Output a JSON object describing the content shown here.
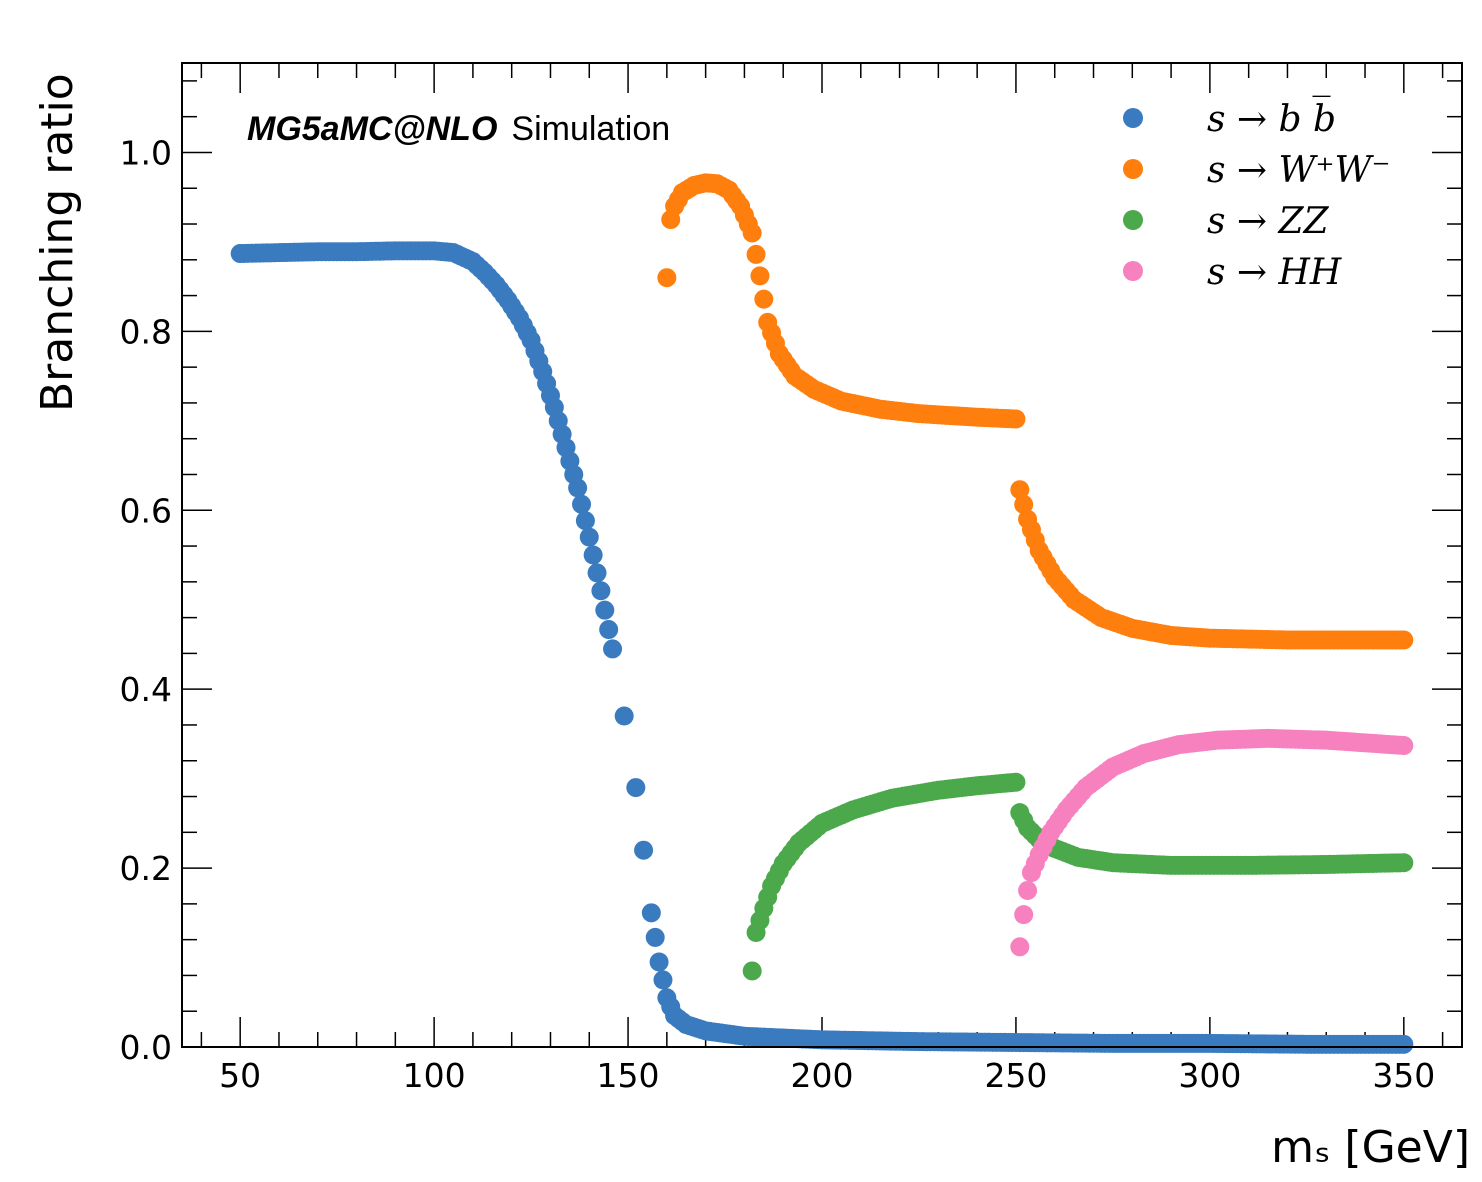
{
  "chart_data": {
    "type": "scatter",
    "xlabel": "mₛ [GeV]",
    "ylabel": "Branching ratio",
    "xlim": [
      35,
      365
    ],
    "ylim": [
      0,
      1.1
    ],
    "x_ticks": [
      "50",
      "100",
      "150",
      "200",
      "250",
      "300",
      "350"
    ],
    "y_ticks": [
      "0.0",
      "0.2",
      "0.4",
      "0.6",
      "0.8",
      "1.0"
    ],
    "experiment_label": {
      "bold": "MG5aMC@NLO",
      "plain": "Simulation"
    },
    "legend_position": "top-right",
    "grid": false,
    "series": [
      {
        "name": "s → b b̅",
        "color": "#3a7bbf",
        "points": [
          [
            50,
            0.887
          ],
          [
            60,
            0.888
          ],
          [
            70,
            0.889
          ],
          [
            80,
            0.889
          ],
          [
            90,
            0.89
          ],
          [
            100,
            0.89
          ],
          [
            105,
            0.888
          ],
          [
            110,
            0.878
          ],
          [
            113,
            0.866
          ],
          [
            116,
            0.852
          ],
          [
            119,
            0.835
          ],
          [
            122,
            0.815
          ],
          [
            125,
            0.79
          ],
          [
            128,
            0.755
          ],
          [
            131,
            0.715
          ],
          [
            134,
            0.67
          ],
          [
            137,
            0.625
          ],
          [
            140,
            0.57
          ],
          [
            143,
            0.51
          ],
          [
            146,
            0.445
          ],
          [
            149,
            0.37
          ],
          [
            152,
            0.29
          ],
          [
            154,
            0.22
          ],
          [
            156,
            0.15
          ],
          [
            158,
            0.095
          ],
          [
            160,
            0.055
          ],
          [
            162,
            0.035
          ],
          [
            165,
            0.025
          ],
          [
            170,
            0.018
          ],
          [
            180,
            0.012
          ],
          [
            200,
            0.008
          ],
          [
            225,
            0.006
          ],
          [
            250,
            0.005
          ],
          [
            275,
            0.004
          ],
          [
            300,
            0.004
          ],
          [
            325,
            0.003
          ],
          [
            350,
            0.003
          ]
        ]
      },
      {
        "name": "s → W⁺W⁻",
        "color": "#ff7f0e",
        "points": [
          [
            160,
            0.86
          ],
          [
            161,
            0.925
          ],
          [
            162,
            0.94
          ],
          [
            164,
            0.955
          ],
          [
            167,
            0.963
          ],
          [
            170,
            0.966
          ],
          [
            173,
            0.965
          ],
          [
            176,
            0.958
          ],
          [
            179,
            0.94
          ],
          [
            182,
            0.91
          ],
          [
            184,
            0.862
          ],
          [
            186,
            0.81
          ],
          [
            189,
            0.775
          ],
          [
            193,
            0.75
          ],
          [
            198,
            0.735
          ],
          [
            205,
            0.722
          ],
          [
            215,
            0.713
          ],
          [
            225,
            0.708
          ],
          [
            240,
            0.704
          ],
          [
            250,
            0.702
          ],
          [
            251,
            0.623
          ],
          [
            253,
            0.59
          ],
          [
            256,
            0.555
          ],
          [
            260,
            0.525
          ],
          [
            265,
            0.5
          ],
          [
            272,
            0.48
          ],
          [
            280,
            0.468
          ],
          [
            290,
            0.46
          ],
          [
            300,
            0.457
          ],
          [
            320,
            0.455
          ],
          [
            340,
            0.455
          ],
          [
            350,
            0.455
          ]
        ]
      },
      {
        "name": "s → ZZ",
        "color": "#4ba84b",
        "points": [
          [
            182,
            0.085
          ],
          [
            183,
            0.128
          ],
          [
            185,
            0.155
          ],
          [
            187,
            0.18
          ],
          [
            190,
            0.205
          ],
          [
            194,
            0.228
          ],
          [
            200,
            0.25
          ],
          [
            208,
            0.265
          ],
          [
            218,
            0.278
          ],
          [
            230,
            0.287
          ],
          [
            240,
            0.292
          ],
          [
            250,
            0.296
          ],
          [
            251,
            0.262
          ],
          [
            253,
            0.245
          ],
          [
            256,
            0.232
          ],
          [
            260,
            0.222
          ],
          [
            266,
            0.212
          ],
          [
            275,
            0.206
          ],
          [
            290,
            0.203
          ],
          [
            310,
            0.203
          ],
          [
            330,
            0.204
          ],
          [
            350,
            0.206
          ]
        ]
      },
      {
        "name": "s → HH",
        "color": "#f781bf",
        "points": [
          [
            251,
            0.112
          ],
          [
            252,
            0.148
          ],
          [
            253,
            0.175
          ],
          [
            254,
            0.195
          ],
          [
            256,
            0.215
          ],
          [
            259,
            0.24
          ],
          [
            263,
            0.265
          ],
          [
            268,
            0.29
          ],
          [
            275,
            0.313
          ],
          [
            283,
            0.328
          ],
          [
            292,
            0.338
          ],
          [
            302,
            0.343
          ],
          [
            315,
            0.345
          ],
          [
            330,
            0.343
          ],
          [
            340,
            0.34
          ],
          [
            350,
            0.337
          ]
        ]
      }
    ]
  }
}
